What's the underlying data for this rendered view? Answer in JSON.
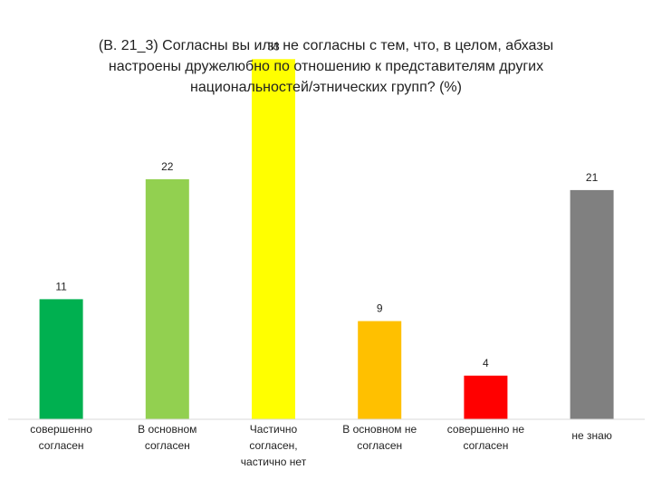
{
  "chart_data": {
    "type": "bar",
    "title_lines": [
      "(В. 21_3)  Согласны  вы или не согласны с тем, что, в целом, абхазы",
      "настроены дружелюбно по отношению к представителям других",
      "национальностей/этнических групп?  (%)"
    ],
    "categories": [
      [
        "совершенно",
        "согласен"
      ],
      [
        "В основном",
        "согласен"
      ],
      [
        "Частично",
        "согласен,",
        "частично нет"
      ],
      [
        "В основном не",
        "согласен"
      ],
      [
        "совершенно не",
        "согласен"
      ],
      [
        "не знаю"
      ]
    ],
    "values": [
      11,
      22,
      33,
      9,
      4,
      21
    ],
    "value_labels": [
      "11",
      "22",
      "33",
      "9",
      "4",
      "21"
    ],
    "colors": [
      "#00b050",
      "#92d050",
      "#ffff00",
      "#ffc000",
      "#ff0000",
      "#808080"
    ],
    "ylim": [
      0,
      35
    ],
    "grid": false,
    "legend": "none"
  }
}
